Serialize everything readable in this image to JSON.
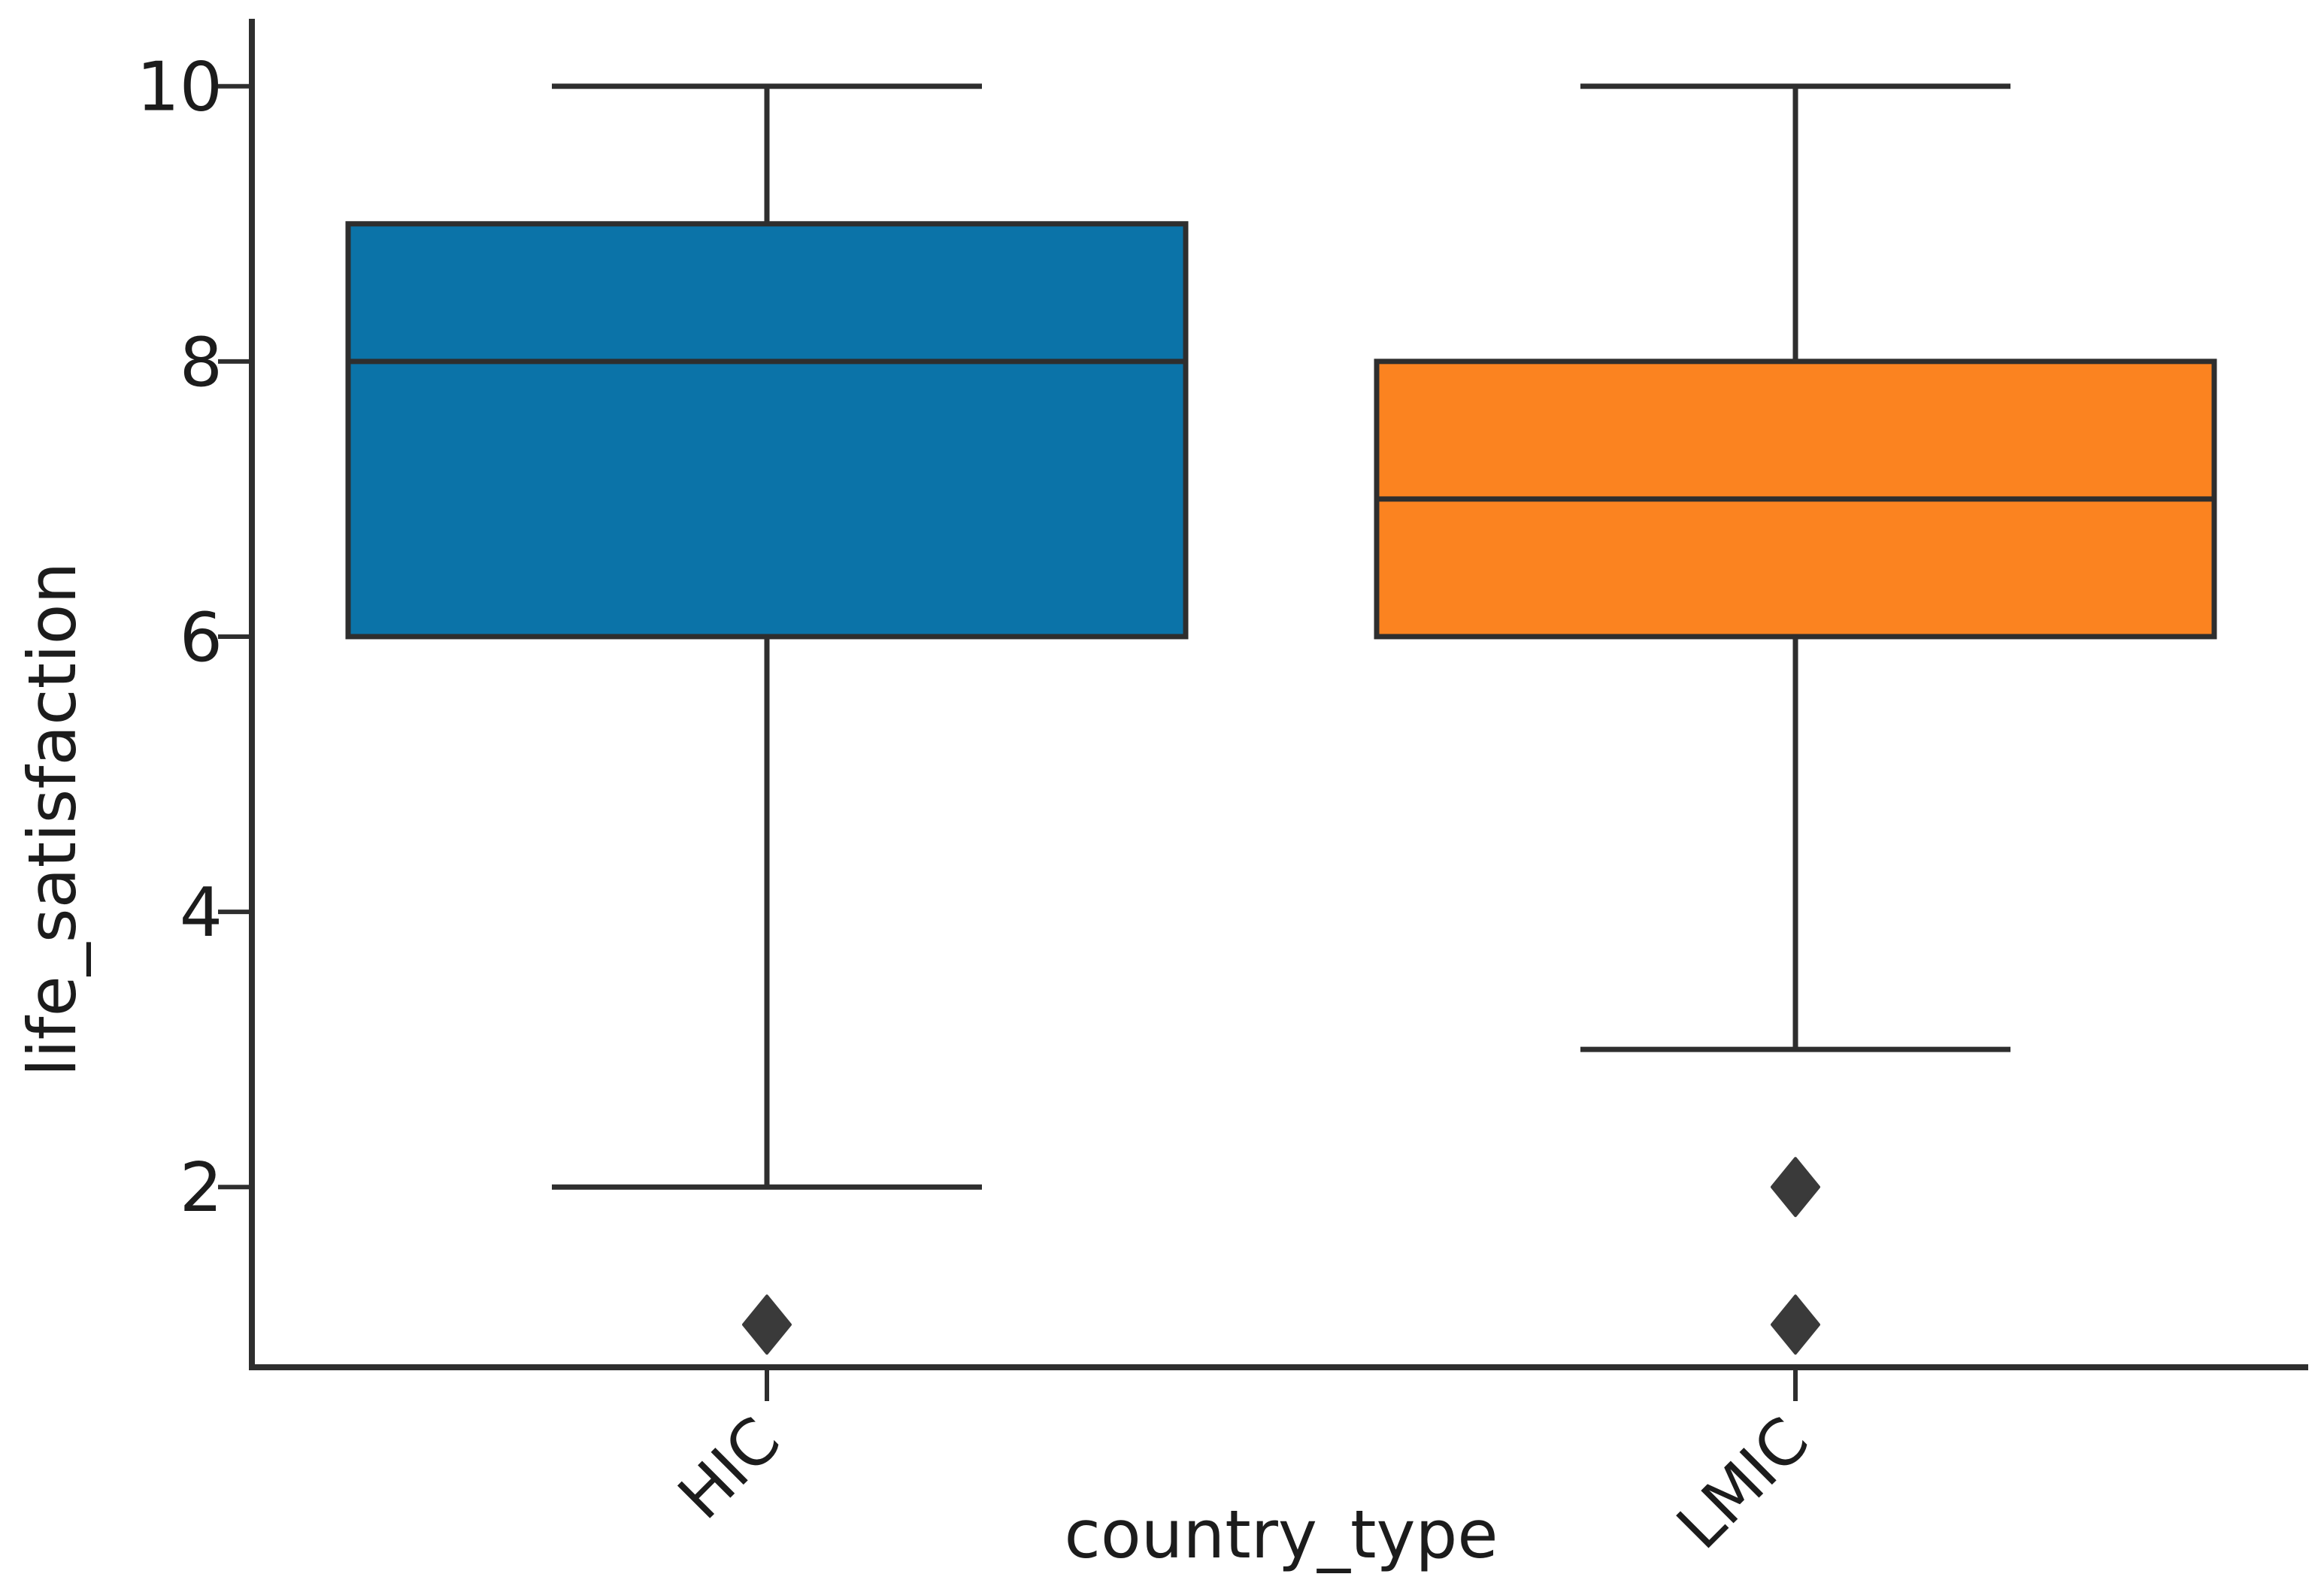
{
  "figure": {
    "background": "#ffffff"
  },
  "chart_data": {
    "type": "box",
    "title": "",
    "xlabel": "country_type",
    "ylabel": "life_satisfaction",
    "categories": [
      "HIC",
      "LMIC"
    ],
    "yticks": [
      2,
      4,
      6,
      8,
      10
    ],
    "ylim": [
      0.69,
      10.49
    ],
    "grid": false,
    "legend": null,
    "series": [
      {
        "label": "HIC",
        "box_color": "#0b73a8",
        "whisker_low": 2,
        "q1": 6,
        "median": 8,
        "q3": 9,
        "whisker_high": 10,
        "outliers": [
          1
        ]
      },
      {
        "label": "LMIC",
        "box_color": "#fb8320",
        "whisker_low": 3,
        "q1": 6,
        "median": 7,
        "q3": 8,
        "whisker_high": 10,
        "outliers": [
          2,
          1
        ]
      }
    ],
    "line_color": "#2e2e2e",
    "marker_color": "#3a3a3a",
    "marker_shape": "diamond"
  }
}
